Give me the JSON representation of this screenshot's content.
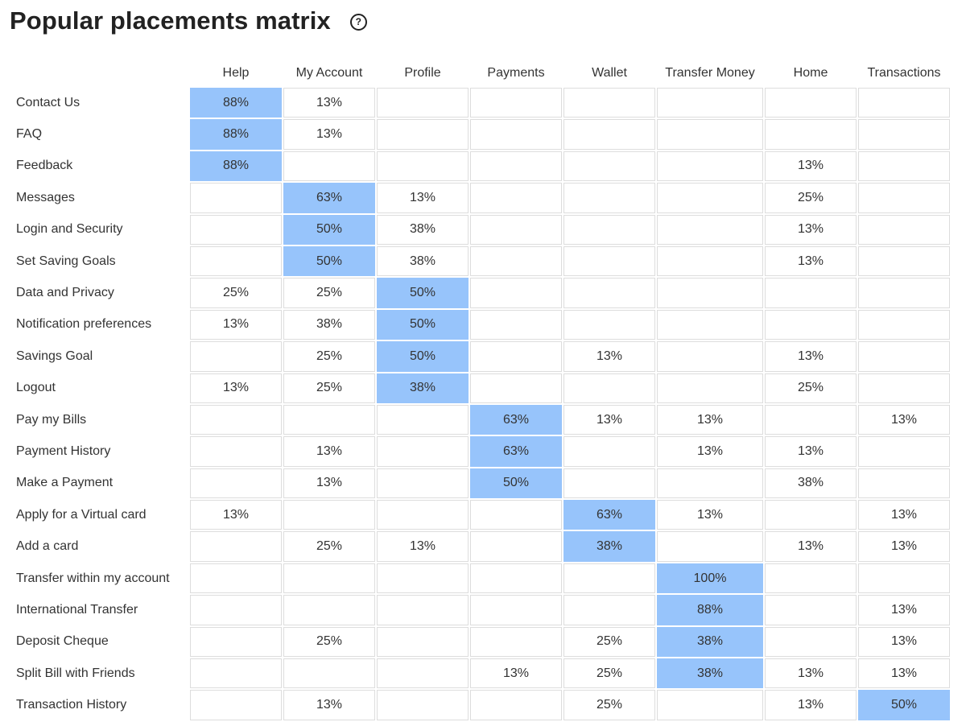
{
  "title": "Popular placements matrix",
  "help_icon": "help-circle-icon",
  "highlight_color": "#97c4fb",
  "chart_data": {
    "type": "heatmap",
    "columns": [
      "Help",
      "My Account",
      "Profile",
      "Payments",
      "Wallet",
      "Transfer Money",
      "Home",
      "Transactions"
    ],
    "rows": [
      {
        "label": "Contact Us",
        "values": [
          "88%",
          "13%",
          "",
          "",
          "",
          "",
          "",
          ""
        ],
        "highlight": 0
      },
      {
        "label": "FAQ",
        "values": [
          "88%",
          "13%",
          "",
          "",
          "",
          "",
          "",
          ""
        ],
        "highlight": 0
      },
      {
        "label": "Feedback",
        "values": [
          "88%",
          "",
          "",
          "",
          "",
          "",
          "13%",
          ""
        ],
        "highlight": 0
      },
      {
        "label": "Messages",
        "values": [
          "",
          "63%",
          "13%",
          "",
          "",
          "",
          "25%",
          ""
        ],
        "highlight": 1
      },
      {
        "label": "Login and Security",
        "values": [
          "",
          "50%",
          "38%",
          "",
          "",
          "",
          "13%",
          ""
        ],
        "highlight": 1
      },
      {
        "label": "Set Saving Goals",
        "values": [
          "",
          "50%",
          "38%",
          "",
          "",
          "",
          "13%",
          ""
        ],
        "highlight": 1
      },
      {
        "label": "Data and Privacy",
        "values": [
          "25%",
          "25%",
          "50%",
          "",
          "",
          "",
          "",
          ""
        ],
        "highlight": 2
      },
      {
        "label": "Notification preferences",
        "values": [
          "13%",
          "38%",
          "50%",
          "",
          "",
          "",
          "",
          ""
        ],
        "highlight": 2
      },
      {
        "label": "Savings Goal",
        "values": [
          "",
          "25%",
          "50%",
          "",
          "13%",
          "",
          "13%",
          ""
        ],
        "highlight": 2
      },
      {
        "label": "Logout",
        "values": [
          "13%",
          "25%",
          "38%",
          "",
          "",
          "",
          "25%",
          ""
        ],
        "highlight": 2
      },
      {
        "label": "Pay my Bills",
        "values": [
          "",
          "",
          "",
          "63%",
          "13%",
          "13%",
          "",
          "13%"
        ],
        "highlight": 3
      },
      {
        "label": "Payment History",
        "values": [
          "",
          "13%",
          "",
          "63%",
          "",
          "13%",
          "13%",
          ""
        ],
        "highlight": 3
      },
      {
        "label": "Make a Payment",
        "values": [
          "",
          "13%",
          "",
          "50%",
          "",
          "",
          "38%",
          ""
        ],
        "highlight": 3
      },
      {
        "label": "Apply for a Virtual card",
        "values": [
          "13%",
          "",
          "",
          "",
          "63%",
          "13%",
          "",
          "13%"
        ],
        "highlight": 4
      },
      {
        "label": "Add a card",
        "values": [
          "",
          "25%",
          "13%",
          "",
          "38%",
          "",
          "13%",
          "13%"
        ],
        "highlight": 4
      },
      {
        "label": "Transfer within my account",
        "values": [
          "",
          "",
          "",
          "",
          "",
          "100%",
          "",
          ""
        ],
        "highlight": 5
      },
      {
        "label": "International Transfer",
        "values": [
          "",
          "",
          "",
          "",
          "",
          "88%",
          "",
          "13%"
        ],
        "highlight": 5
      },
      {
        "label": "Deposit Cheque",
        "values": [
          "",
          "25%",
          "",
          "",
          "25%",
          "38%",
          "",
          "13%"
        ],
        "highlight": 5
      },
      {
        "label": "Split Bill with Friends",
        "values": [
          "",
          "",
          "",
          "13%",
          "25%",
          "38%",
          "13%",
          "13%"
        ],
        "highlight": 5
      },
      {
        "label": "Transaction History",
        "values": [
          "",
          "13%",
          "",
          "",
          "25%",
          "",
          "13%",
          "50%"
        ],
        "highlight": 7
      }
    ]
  }
}
